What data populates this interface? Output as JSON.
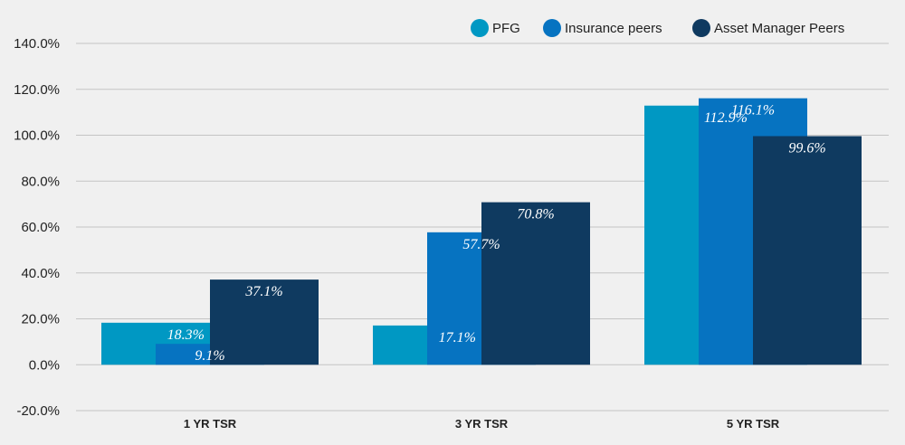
{
  "chart_data": {
    "type": "bar",
    "title": "",
    "xlabel": "",
    "ylabel": "",
    "categories": [
      "1 YR TSR",
      "3 YR TSR",
      "5 YR TSR"
    ],
    "series": [
      {
        "name": "PFG",
        "color": "#0098c3",
        "values": [
          18.3,
          17.1,
          112.9
        ],
        "labels": [
          "18.3%",
          "17.1%",
          "112.9%"
        ]
      },
      {
        "name": "Insurance peers",
        "color": "#0673c1",
        "values": [
          9.1,
          57.7,
          116.1
        ],
        "labels": [
          "9.1%",
          "57.7%",
          "116.1%"
        ]
      },
      {
        "name": "Asset Manager Peers",
        "color": "#0f3a60",
        "values": [
          37.1,
          70.8,
          99.6
        ],
        "labels": [
          "37.1%",
          "70.8%",
          "99.6%"
        ]
      }
    ],
    "ylim": [
      -20,
      140
    ],
    "yticks": [
      -20,
      0,
      20,
      40,
      60,
      80,
      100,
      120,
      140
    ],
    "ytick_labels": [
      "-20.0%",
      "0.0%",
      "20.0%",
      "40.0%",
      "60.0%",
      "80.0%",
      "100.0%",
      "120.0%",
      "140.0%"
    ],
    "grid": true,
    "legend_position": "top-right"
  }
}
